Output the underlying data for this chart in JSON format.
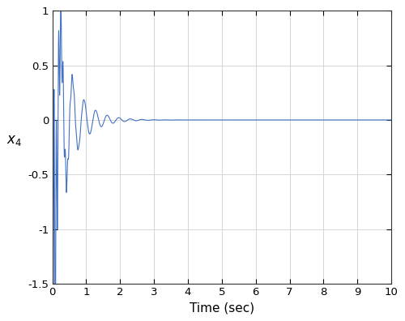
{
  "title": "",
  "xlabel": "Time (sec)",
  "ylabel": "$x_4$",
  "xlim": [
    0,
    10
  ],
  "ylim": [
    -1.5,
    1
  ],
  "yticks": [
    -1.5,
    -1,
    -0.5,
    0,
    0.5,
    1
  ],
  "xticks": [
    0,
    1,
    2,
    3,
    4,
    5,
    6,
    7,
    8,
    9,
    10
  ],
  "line_color": "#4472c4",
  "background_color": "#ffffff",
  "grid_color": "#d0d0d0",
  "t_end": 10.0,
  "dt": 0.0005,
  "figsize": [
    5.0,
    3.96
  ],
  "dpi": 100
}
